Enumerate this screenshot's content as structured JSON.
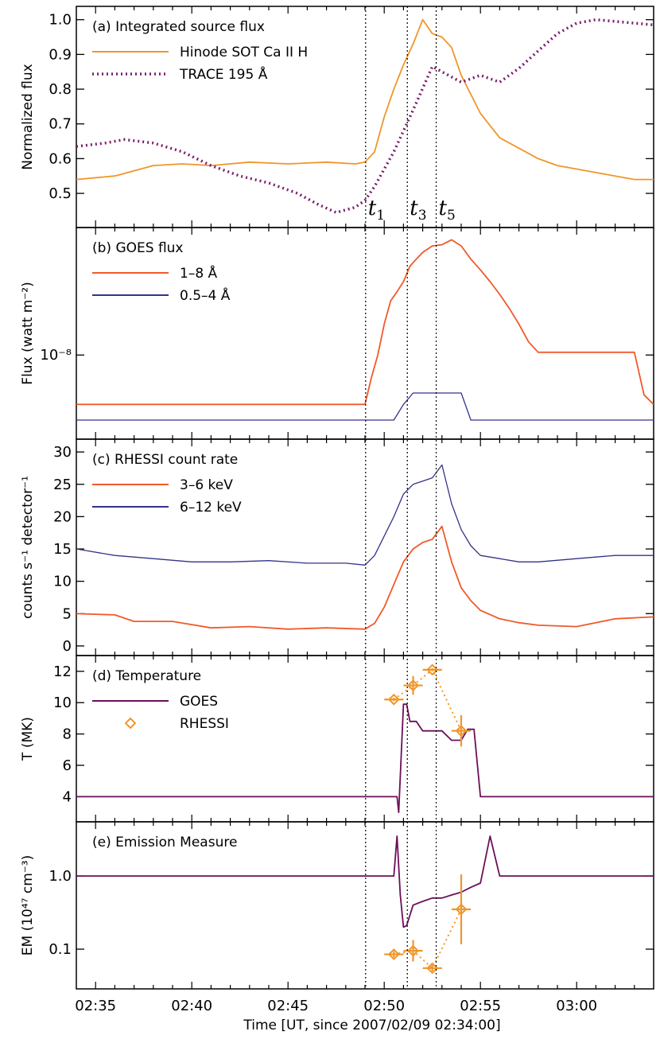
{
  "figure": {
    "x_axis_label": "Time [UT, since 2007/02/09 02:34:00]",
    "x_tick_labels": [
      "02:35",
      "02:40",
      "02:45",
      "02:50",
      "02:55",
      "03:00"
    ],
    "time_markers": [
      {
        "label": "t",
        "sub": "1",
        "time": "02:49:02"
      },
      {
        "label": "t",
        "sub": "3",
        "time": "02:51:12"
      },
      {
        "label": "t",
        "sub": "5",
        "time": "02:52:42"
      }
    ]
  },
  "chart_data": [
    {
      "panel": "a",
      "type": "line",
      "title": "(a) Integrated source flux",
      "ylabel": "Normalized flux",
      "ylim": [
        0.42,
        1.02
      ],
      "yticks": [
        "0.5",
        "0.6",
        "0.7",
        "0.8",
        "0.9",
        "1.0"
      ],
      "xlim": [
        "02:34:00",
        "03:04:00"
      ],
      "legend_placement": "top-left",
      "series": [
        {
          "name": "Hinode SOT Ca II H",
          "color": "#f0962a",
          "style": "solid",
          "x": [
            "02:34:00",
            "02:36:00",
            "02:38:00",
            "02:39:30",
            "02:41:00",
            "02:43:00",
            "02:45:00",
            "02:47:00",
            "02:48:30",
            "02:49:00",
            "02:49:30",
            "02:50:00",
            "02:50:30",
            "02:51:00",
            "02:51:30",
            "02:52:00",
            "02:52:30",
            "02:53:00",
            "02:53:30",
            "02:54:00",
            "02:55:00",
            "02:56:00",
            "02:57:00",
            "02:58:00",
            "02:59:00",
            "03:00:00",
            "03:01:00",
            "03:02:00",
            "03:03:00",
            "03:04:00"
          ],
          "y": [
            0.54,
            0.55,
            0.58,
            0.585,
            0.58,
            0.59,
            0.585,
            0.59,
            0.585,
            0.59,
            0.62,
            0.72,
            0.8,
            0.87,
            0.93,
            1.0,
            0.96,
            0.95,
            0.92,
            0.84,
            0.73,
            0.66,
            0.63,
            0.6,
            0.58,
            0.57,
            0.56,
            0.55,
            0.54,
            0.54
          ]
        },
        {
          "name": "TRACE 195 Å",
          "color": "#7b1f6b",
          "style": "dotted",
          "x": [
            "02:34:00",
            "02:35:30",
            "02:36:30",
            "02:38:00",
            "02:39:30",
            "02:41:00",
            "02:42:30",
            "02:44:00",
            "02:45:30",
            "02:46:30",
            "02:47:30",
            "02:48:30",
            "02:49:00",
            "02:49:30",
            "02:50:30",
            "02:51:30",
            "02:52:30",
            "02:53:00",
            "02:54:00",
            "02:55:00",
            "02:56:00",
            "02:57:00",
            "02:58:00",
            "02:59:00",
            "03:00:00",
            "03:01:00",
            "03:02:00",
            "03:03:00",
            "03:04:00"
          ],
          "y": [
            0.635,
            0.645,
            0.655,
            0.645,
            0.62,
            0.58,
            0.55,
            0.53,
            0.5,
            0.47,
            0.445,
            0.46,
            0.48,
            0.52,
            0.62,
            0.74,
            0.865,
            0.85,
            0.82,
            0.84,
            0.82,
            0.86,
            0.91,
            0.96,
            0.99,
            1.0,
            0.995,
            0.99,
            0.985
          ]
        }
      ]
    },
    {
      "panel": "b",
      "type": "line",
      "title": "(b) GOES flux",
      "ylabel": "Flux (watt m⁻²)",
      "yscale": "log",
      "ylim": [
        5.7e-09,
        2.4e-08
      ],
      "yticks": [
        "10⁻⁸"
      ],
      "xlim": [
        "02:34:00",
        "03:04:00"
      ],
      "legend_placement": "top-left",
      "series": [
        {
          "name": "1–8 Å",
          "color": "#f05a2a",
          "style": "solid",
          "x": [
            "02:34:00",
            "02:49:00",
            "02:49:20",
            "02:49:40",
            "02:50:00",
            "02:50:20",
            "02:50:40",
            "02:51:00",
            "02:51:20",
            "02:51:40",
            "02:52:00",
            "02:52:30",
            "02:53:00",
            "02:53:30",
            "02:54:00",
            "02:54:30",
            "02:55:00",
            "02:55:30",
            "02:56:00",
            "02:56:30",
            "02:57:00",
            "02:57:30",
            "02:58:00",
            "03:03:00",
            "03:03:30",
            "03:04:00"
          ],
          "y": [
            7e-09,
            7e-09,
            8.5e-09,
            1e-08,
            1.25e-08,
            1.48e-08,
            1.58e-08,
            1.7e-08,
            1.9e-08,
            2e-08,
            2.1e-08,
            2.2e-08,
            2.22e-08,
            2.3e-08,
            2.2e-08,
            2e-08,
            1.85e-08,
            1.7e-08,
            1.55e-08,
            1.4e-08,
            1.25e-08,
            1.1e-08,
            1.02e-08,
            1.02e-08,
            7.5e-09,
            7e-09
          ]
        },
        {
          "name": "0.5–4 Å",
          "color": "#33338a",
          "style": "solid",
          "x": [
            "02:34:00",
            "02:50:30",
            "02:51:00",
            "02:51:30",
            "02:54:00",
            "02:54:30",
            "03:04:00"
          ],
          "y": [
            6.25e-09,
            6.25e-09,
            7e-09,
            7.6e-09,
            7.6e-09,
            6.25e-09,
            6.25e-09
          ]
        }
      ]
    },
    {
      "panel": "c",
      "type": "line",
      "title": "(c) RHESSI count rate",
      "ylabel": "counts s⁻¹ detector⁻¹",
      "ylim": [
        -0.5,
        31
      ],
      "yticks": [
        "0",
        "5",
        "10",
        "15",
        "20",
        "25",
        "30"
      ],
      "xlim": [
        "02:34:00",
        "03:04:00"
      ],
      "legend_placement": "top-left",
      "series": [
        {
          "name": "3–6 keV",
          "color": "#f05a2a",
          "style": "solid",
          "x": [
            "02:34:00",
            "02:36:00",
            "02:37:00",
            "02:39:00",
            "02:41:00",
            "02:43:00",
            "02:45:00",
            "02:47:00",
            "02:49:00",
            "02:49:30",
            "02:50:00",
            "02:50:30",
            "02:51:00",
            "02:51:30",
            "02:52:00",
            "02:52:30",
            "02:53:00",
            "02:53:30",
            "02:54:00",
            "02:54:30",
            "02:55:00",
            "02:56:00",
            "02:57:00",
            "02:58:00",
            "03:00:00",
            "03:02:00",
            "03:04:00"
          ],
          "y": [
            5,
            4.8,
            3.8,
            3.8,
            2.8,
            3.0,
            2.6,
            2.8,
            2.6,
            3.5,
            6,
            9.5,
            13,
            15,
            16,
            16.5,
            18.5,
            13,
            9,
            7,
            5.5,
            4.2,
            3.6,
            3.2,
            3.0,
            4.2,
            4.5
          ]
        },
        {
          "name": "6–12 keV",
          "color": "#33338a",
          "style": "solid",
          "x": [
            "02:34:00",
            "02:36:00",
            "02:38:00",
            "02:40:00",
            "02:42:00",
            "02:44:00",
            "02:46:00",
            "02:48:00",
            "02:49:00",
            "02:49:30",
            "02:50:00",
            "02:50:30",
            "02:51:00",
            "02:51:30",
            "02:52:00",
            "02:52:30",
            "02:53:00",
            "02:53:30",
            "02:54:00",
            "02:54:30",
            "02:55:00",
            "02:56:00",
            "02:57:00",
            "02:58:00",
            "03:00:00",
            "03:02:00",
            "03:04:00"
          ],
          "y": [
            15,
            14,
            13.5,
            13,
            13,
            13.2,
            12.8,
            12.8,
            12.5,
            14,
            17,
            20,
            23.5,
            25,
            25.5,
            26,
            28,
            22,
            18,
            15.5,
            14,
            13.5,
            13,
            13,
            13.5,
            14,
            14
          ]
        }
      ]
    },
    {
      "panel": "d",
      "type": "line",
      "title": "(d) Temperature",
      "ylabel": "T (MK)",
      "ylim": [
        2.8,
        12.6
      ],
      "yticks": [
        "4",
        "6",
        "8",
        "10",
        "12"
      ],
      "xlim": [
        "02:34:00",
        "03:04:00"
      ],
      "legend_placement": "top-left",
      "series": [
        {
          "name": "GOES",
          "color": "#6b0f5a",
          "style": "solid",
          "x": [
            "02:34:00",
            "02:50:40",
            "02:50:45",
            "02:51:00",
            "02:51:10",
            "02:51:20",
            "02:51:40",
            "02:52:00",
            "02:52:30",
            "02:53:00",
            "02:53:30",
            "02:54:00",
            "02:54:20",
            "02:54:40",
            "02:55:00",
            "03:04:00"
          ],
          "y": [
            4,
            4,
            3.0,
            9.9,
            9.9,
            8.8,
            8.8,
            8.2,
            8.2,
            8.2,
            7.6,
            7.6,
            8.3,
            8.3,
            4,
            4
          ]
        },
        {
          "name": "RHESSI",
          "color": "#f0962a",
          "style": "diamond-dotted",
          "x": [
            "02:50:30",
            "02:51:30",
            "02:52:30",
            "02:54:00"
          ],
          "y": [
            10.2,
            11.1,
            12.1,
            8.2
          ],
          "x_err_s": [
            30,
            30,
            30,
            30
          ],
          "y_err": [
            0.1,
            0.6,
            0.1,
            1.0
          ]
        }
      ]
    },
    {
      "panel": "e",
      "type": "line",
      "title": "(e) Emission Measure",
      "ylabel": "EM (10⁴⁷ cm⁻³)",
      "yscale": "log",
      "ylim": [
        0.035,
        4.5
      ],
      "yticks": [
        "0.1",
        "1.0"
      ],
      "xlim": [
        "02:34:00",
        "03:04:00"
      ],
      "legend_placement": "none",
      "series": [
        {
          "name": "GOES",
          "color": "#6b0f5a",
          "style": "solid",
          "x": [
            "02:34:00",
            "02:50:30",
            "02:50:40",
            "02:50:50",
            "02:51:00",
            "02:51:10",
            "02:51:30",
            "02:52:00",
            "02:52:30",
            "02:53:00",
            "02:53:30",
            "02:54:00",
            "02:54:30",
            "02:55:00",
            "02:55:30",
            "02:56:00",
            "02:57:00",
            "03:04:00"
          ],
          "y": [
            1.0,
            1.0,
            3.5,
            0.55,
            0.2,
            0.21,
            0.4,
            0.45,
            0.5,
            0.5,
            0.55,
            0.6,
            0.7,
            0.8,
            3.5,
            1.0,
            1.0,
            1.0
          ]
        },
        {
          "name": "RHESSI",
          "color": "#f0962a",
          "style": "diamond-dotted",
          "x": [
            "02:50:30",
            "02:51:30",
            "02:52:30",
            "02:54:00"
          ],
          "y": [
            0.085,
            0.095,
            0.055,
            0.35
          ],
          "x_err_s": [
            30,
            30,
            30,
            30
          ],
          "y_err_factor": [
            1.1,
            1.4,
            1.1,
            3.0
          ]
        }
      ]
    }
  ]
}
